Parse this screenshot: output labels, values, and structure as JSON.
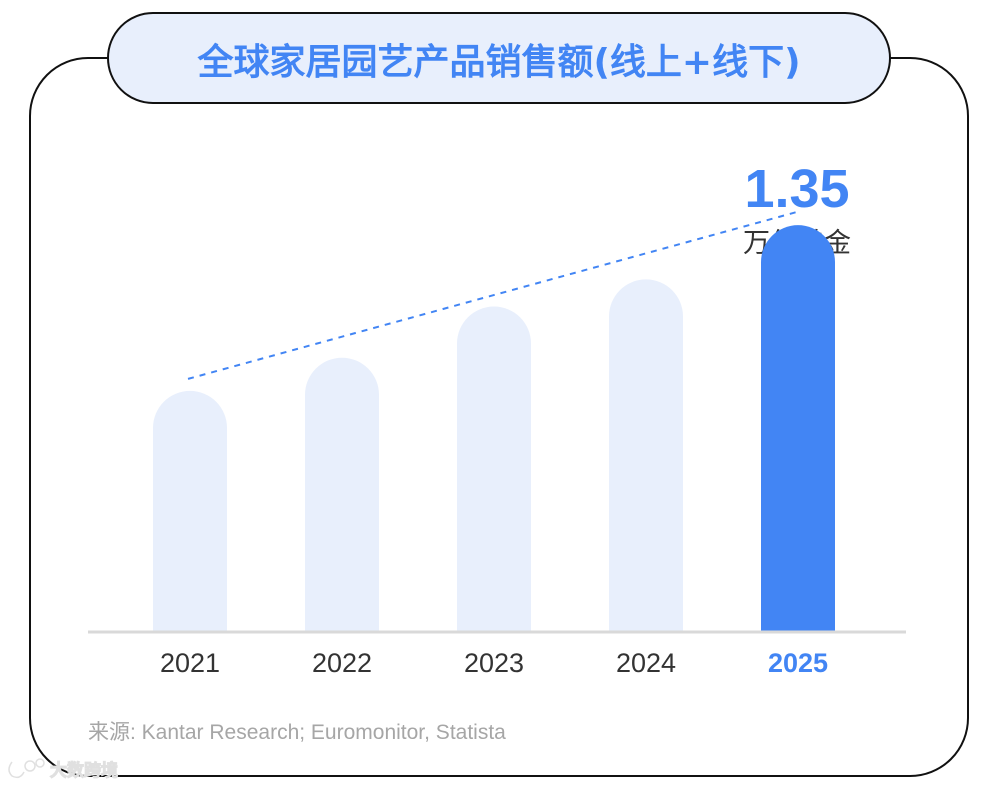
{
  "title": "全球家居园艺产品销售额(线上+线下)",
  "callout": {
    "value": "1.35",
    "unit": "万亿美金"
  },
  "source": "来源: Kantar Research; Euromonitor, Statista",
  "watermark": "大数跨境",
  "colors": {
    "accent": "#4285f4",
    "bar_light": "#e8effc",
    "frame": "#111111",
    "title_bg": "#e8effc",
    "baseline": "#d9d9d9",
    "trend_line": "#4285f4"
  },
  "chart_data": {
    "type": "bar",
    "title": "全球家居园艺产品销售额(线上+线下)",
    "categories": [
      "2021",
      "2022",
      "2023",
      "2024",
      "2025"
    ],
    "values": [
      0.8,
      0.91,
      1.08,
      1.17,
      1.35
    ],
    "highlight": "2025",
    "unit": "万亿美金",
    "ylim": [
      0,
      1.45
    ],
    "grid": false,
    "trend_line": "dashed",
    "legend": "none"
  }
}
